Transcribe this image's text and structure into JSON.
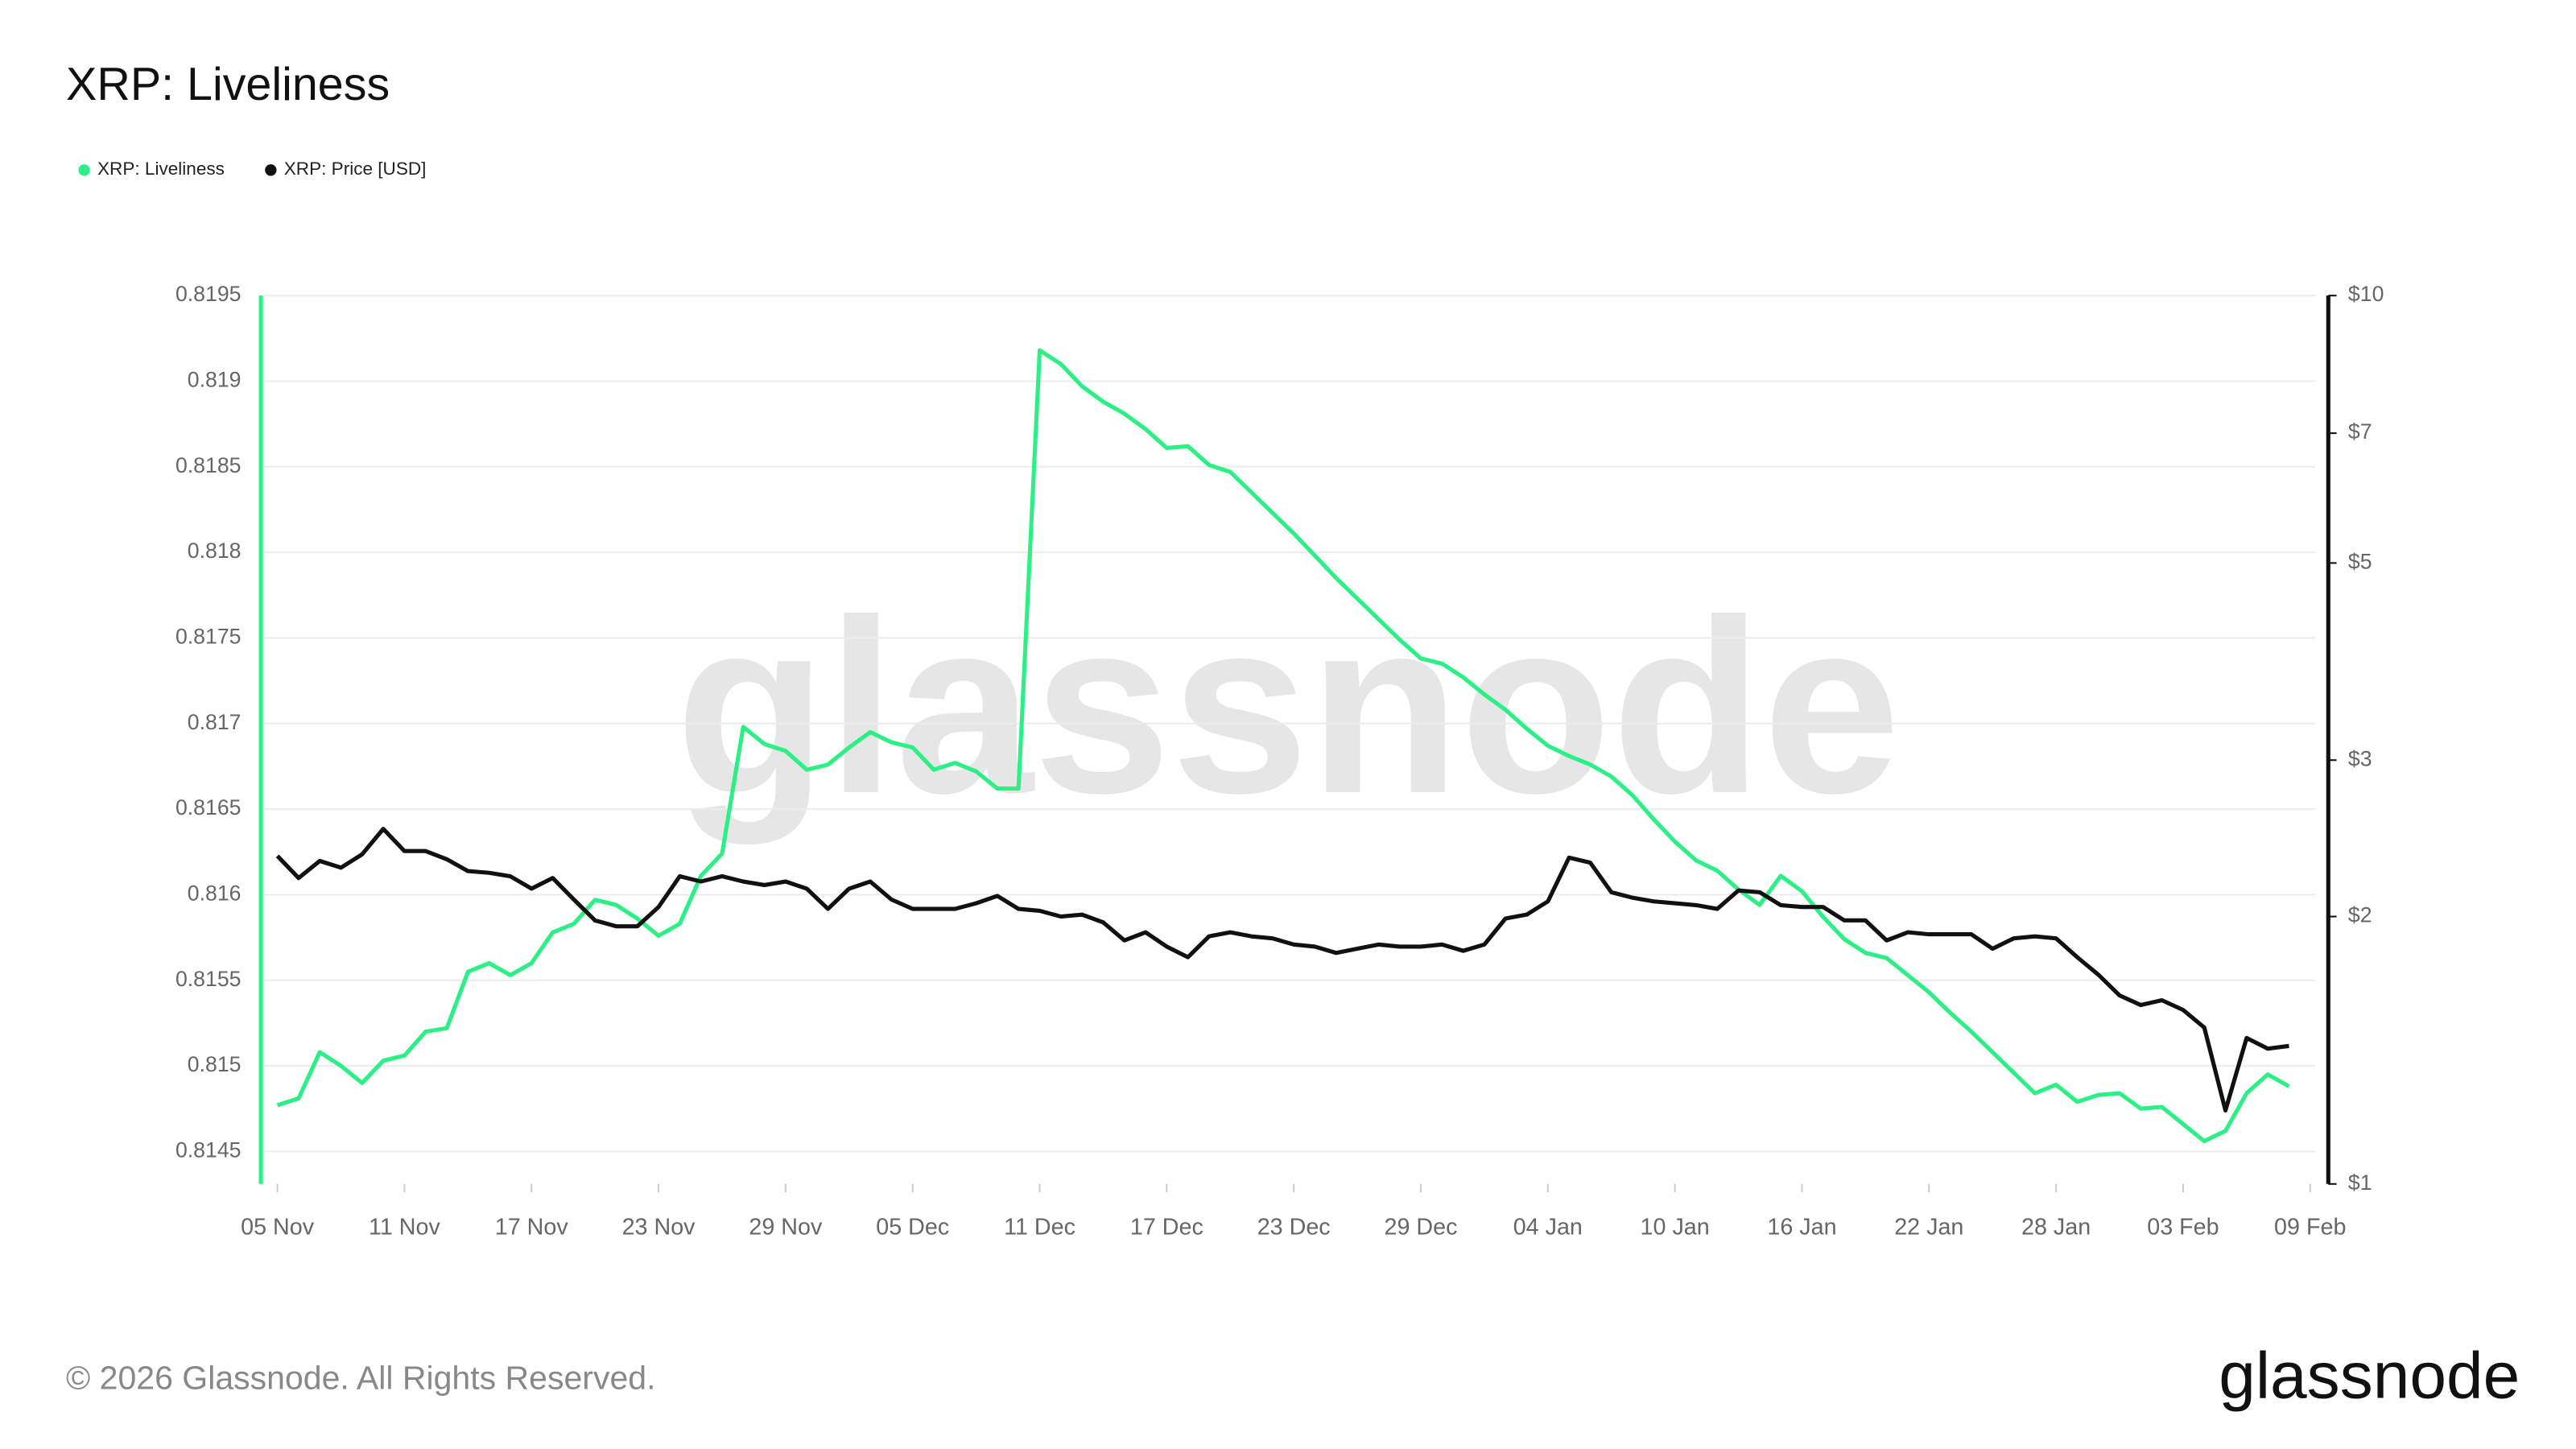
{
  "chart_data": {
    "type": "line",
    "title": "XRP: Liveliness",
    "categories": [
      "05 Nov",
      null,
      null,
      null,
      null,
      null,
      "11 Nov",
      null,
      null,
      null,
      null,
      null,
      "17 Nov",
      null,
      null,
      null,
      null,
      null,
      "23 Nov",
      null,
      null,
      null,
      null,
      null,
      "29 Nov",
      null,
      null,
      null,
      null,
      null,
      "05 Dec",
      null,
      null,
      null,
      null,
      null,
      "11 Dec",
      null,
      null,
      null,
      null,
      null,
      "17 Dec",
      null,
      null,
      null,
      null,
      null,
      "23 Dec",
      null,
      null,
      null,
      null,
      null,
      "29 Dec",
      null,
      null,
      null,
      null,
      null,
      "04 Jan",
      null,
      null,
      null,
      null,
      null,
      "10 Jan",
      null,
      null,
      null,
      null,
      null,
      "16 Jan",
      null,
      null,
      null,
      null,
      null,
      "22 Jan",
      null,
      null,
      null,
      null,
      null,
      "28 Jan",
      null,
      null,
      null,
      null,
      null,
      "03 Feb",
      null,
      null,
      null,
      null,
      null,
      "09 Feb"
    ],
    "series": [
      {
        "name": "XRP: Liveliness",
        "color": "#2cf086",
        "values": [
          0.81477,
          0.81481,
          0.81508,
          0.815,
          0.8149,
          0.81503,
          0.81506,
          0.8152,
          0.81522,
          0.81555,
          0.8156,
          0.81553,
          0.8156,
          0.81578,
          0.81583,
          0.81597,
          0.81594,
          0.81586,
          0.81576,
          0.81583,
          0.81611,
          0.81624,
          0.81698,
          0.81688,
          0.81684,
          0.81673,
          0.81676,
          0.81686,
          0.81695,
          0.81689,
          0.81686,
          0.81673,
          0.81677,
          0.81672,
          0.81662,
          0.81662,
          0.81918,
          0.8191,
          0.81897,
          0.81888,
          0.81881,
          0.81872,
          0.81861,
          0.81862,
          0.81851,
          0.81847,
          0.81835,
          0.81823,
          0.81811,
          0.81798,
          0.81785,
          0.81773,
          0.81761,
          0.81749,
          0.81738,
          0.81735,
          0.81727,
          0.81717,
          0.81708,
          0.81697,
          0.81687,
          0.81681,
          0.81676,
          0.81669,
          0.81658,
          0.81644,
          0.81631,
          0.8162,
          0.81614,
          0.81603,
          0.81594,
          0.81611,
          0.81602,
          0.81587,
          0.81574,
          0.81566,
          0.81563,
          0.81553,
          0.81543,
          0.81531,
          0.8152,
          0.81508,
          0.81496,
          0.81484,
          0.81489,
          0.81479,
          0.81483,
          0.81484,
          0.81475,
          0.81476,
          0.81466,
          0.81456,
          0.81462,
          0.81484,
          0.81495,
          0.81488,
          null
        ]
      },
      {
        "name": "XRP: Price [USD]",
        "color": "#111111",
        "axis": "y2",
        "values": [
          2.34,
          2.21,
          2.31,
          2.27,
          2.35,
          2.51,
          2.37,
          2.37,
          2.32,
          2.25,
          2.24,
          2.22,
          2.15,
          2.21,
          2.09,
          1.98,
          1.95,
          1.95,
          2.05,
          2.22,
          2.19,
          2.22,
          2.19,
          2.17,
          2.19,
          2.15,
          2.04,
          2.15,
          2.19,
          2.09,
          2.04,
          2.04,
          2.04,
          2.07,
          2.11,
          2.04,
          2.03,
          2.0,
          2.01,
          1.97,
          1.88,
          1.92,
          1.85,
          1.8,
          1.9,
          1.92,
          1.9,
          1.89,
          1.86,
          1.85,
          1.82,
          1.84,
          1.86,
          1.85,
          1.85,
          1.86,
          1.83,
          1.86,
          1.99,
          2.01,
          2.08,
          2.33,
          2.3,
          2.13,
          2.1,
          2.08,
          2.07,
          2.06,
          2.04,
          2.14,
          2.13,
          2.06,
          2.05,
          2.05,
          1.98,
          1.98,
          1.88,
          1.92,
          1.91,
          1.91,
          1.91,
          1.84,
          1.89,
          1.9,
          1.89,
          1.8,
          1.72,
          1.63,
          1.59,
          1.61,
          1.57,
          1.5,
          1.21,
          1.46,
          1.42,
          1.43,
          null
        ]
      }
    ],
    "ylim": [
      0.81431,
      0.8195
    ],
    "yticks": [
      0.8145,
      0.815,
      0.8155,
      0.816,
      0.8165,
      0.817,
      0.8175,
      0.818,
      0.8185,
      0.819,
      0.8195
    ],
    "y2lim": [
      1,
      10
    ],
    "y2scale": "log",
    "y2ticks": [
      {
        "value": 1,
        "label": "$1"
      },
      {
        "value": 2,
        "label": "$2"
      },
      {
        "value": 3,
        "label": "$3"
      },
      {
        "value": 5,
        "label": "$5"
      },
      {
        "value": 7,
        "label": "$7"
      },
      {
        "value": 10,
        "label": "$10"
      }
    ],
    "grid": true
  },
  "watermark": "glassnode",
  "footer": {
    "copyright": "© 2026 Glassnode. All Rights Reserved.",
    "logo": "glassnode"
  }
}
